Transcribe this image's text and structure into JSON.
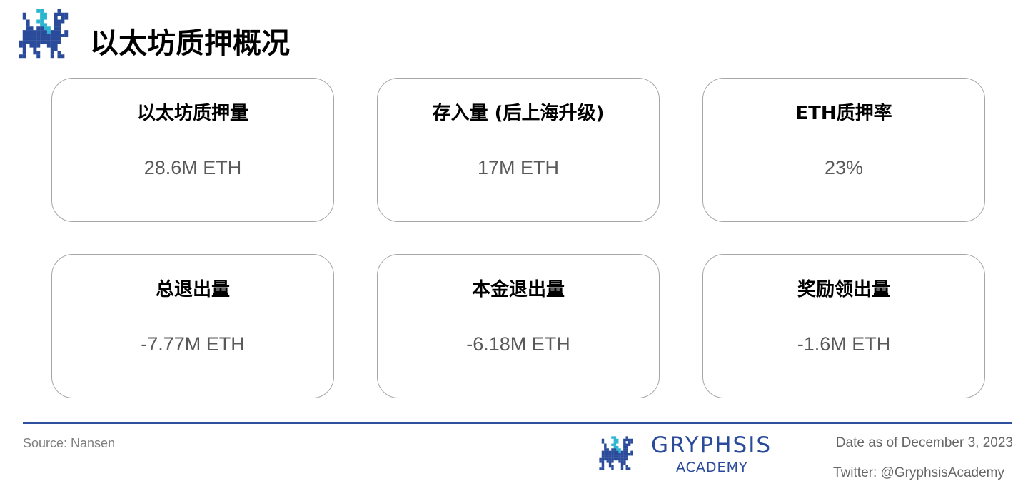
{
  "header": {
    "title": "以太坊质押概况",
    "logo_icon": "gryphon-logo-icon"
  },
  "cards": [
    {
      "title": "以太坊质押量",
      "value": "28.6M ETH"
    },
    {
      "title": "存入量 (后上海升级)",
      "value": "17M ETH"
    },
    {
      "title": "ETH质押率",
      "value": "23%"
    },
    {
      "title": "总退出量",
      "value": "-7.77M ETH"
    },
    {
      "title": "本金退出量",
      "value": "-6.18M ETH"
    },
    {
      "title": "奖励领出量",
      "value": "-1.6M ETH"
    }
  ],
  "footer": {
    "source": "Source: Nansen",
    "brand": "GRYPHSIS",
    "brand_sub": "ACADEMY",
    "date": "Date as of December 3, 2023",
    "twitter": "Twitter: @GryphsisAcademy"
  },
  "colors": {
    "brand_blue": "#2a4a9a",
    "brand_cyan": "#2bb5d0",
    "rule": "#2f4f9f"
  }
}
